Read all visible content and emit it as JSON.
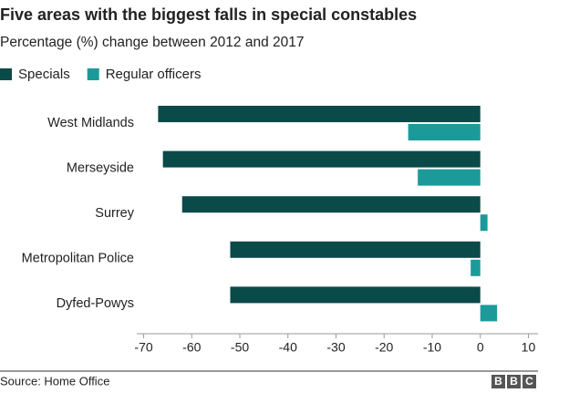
{
  "chart_data": {
    "type": "hbar",
    "title": "Five areas with the biggest falls in special constables",
    "subtitle": "Percentage (%) change between 2012 and 2017",
    "categories": [
      "West Midlands",
      "Merseyside",
      "Surrey",
      "Metropolitan Police",
      "Dyfed-Powys"
    ],
    "series": [
      {
        "name": "Specials",
        "color": "#0a4a49",
        "values": [
          -67,
          -66,
          -62,
          -52,
          -52
        ]
      },
      {
        "name": "Regular officers",
        "color": "#1c9a9a",
        "values": [
          -15,
          -13,
          1.5,
          -2,
          3.5
        ]
      }
    ],
    "xlim": [
      -72,
      12
    ],
    "xticks": [
      -70,
      -60,
      -50,
      -40,
      -30,
      -20,
      -10,
      0,
      10
    ],
    "grid": false,
    "source": "Source: Home Office",
    "logo": [
      "B",
      "B",
      "C"
    ]
  }
}
